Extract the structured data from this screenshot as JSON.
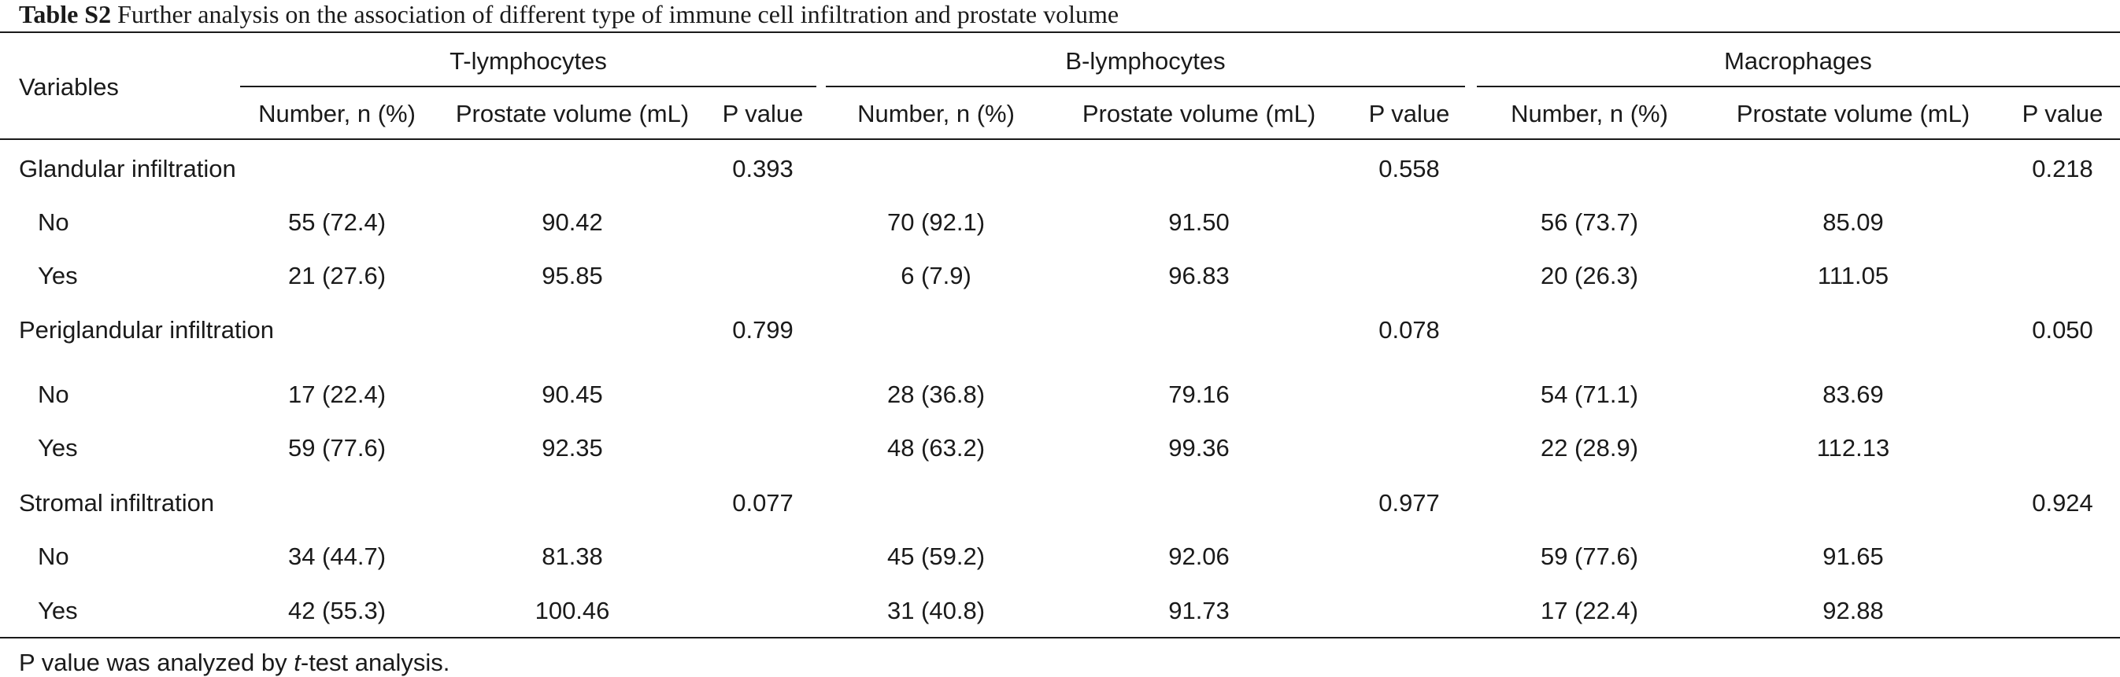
{
  "caption": {
    "label": "Table S2",
    "text": "Further analysis on the association of different type of immune cell infiltration and prostate volume"
  },
  "header": {
    "variables": "Variables",
    "groups": [
      "T-lymphocytes",
      "B-lymphocytes",
      "Macrophages"
    ],
    "sub": {
      "number": "Number, n (%)",
      "volume": "Prostate volume (mL)",
      "p": "P value"
    }
  },
  "sections": [
    {
      "label": "Glandular infiltration",
      "p": [
        "0.393",
        "0.558",
        "0.218"
      ],
      "rows": [
        {
          "label": "No",
          "values": [
            "55 (72.4)",
            "90.42",
            "70 (92.1)",
            "91.50",
            "56 (73.7)",
            "85.09"
          ]
        },
        {
          "label": "Yes",
          "values": [
            "21 (27.6)",
            "95.85",
            "6 (7.9)",
            "96.83",
            "20 (26.3)",
            "111.05"
          ]
        }
      ]
    },
    {
      "label": "Periglandular infiltration",
      "p": [
        "0.799",
        "0.078",
        "0.050"
      ],
      "rows": [
        {
          "label": "No",
          "values": [
            "17 (22.4)",
            "90.45",
            "28 (36.8)",
            "79.16",
            "54 (71.1)",
            "83.69"
          ]
        },
        {
          "label": "Yes",
          "values": [
            "59 (77.6)",
            "92.35",
            "48 (63.2)",
            "99.36",
            "22 (28.9)",
            "112.13"
          ]
        }
      ]
    },
    {
      "label": "Stromal infiltration",
      "p": [
        "0.077",
        "0.977",
        "0.924"
      ],
      "rows": [
        {
          "label": "No",
          "values": [
            "34 (44.7)",
            "81.38",
            "45 (59.2)",
            "92.06",
            "59 (77.6)",
            "91.65"
          ]
        },
        {
          "label": "Yes",
          "values": [
            "42 (55.3)",
            "100.46",
            "31 (40.8)",
            "91.73",
            "17 (22.4)",
            "92.88"
          ]
        }
      ]
    }
  ],
  "footnote": {
    "before": "P value was analyzed by ",
    "italic": "t",
    "after": "-test analysis."
  }
}
